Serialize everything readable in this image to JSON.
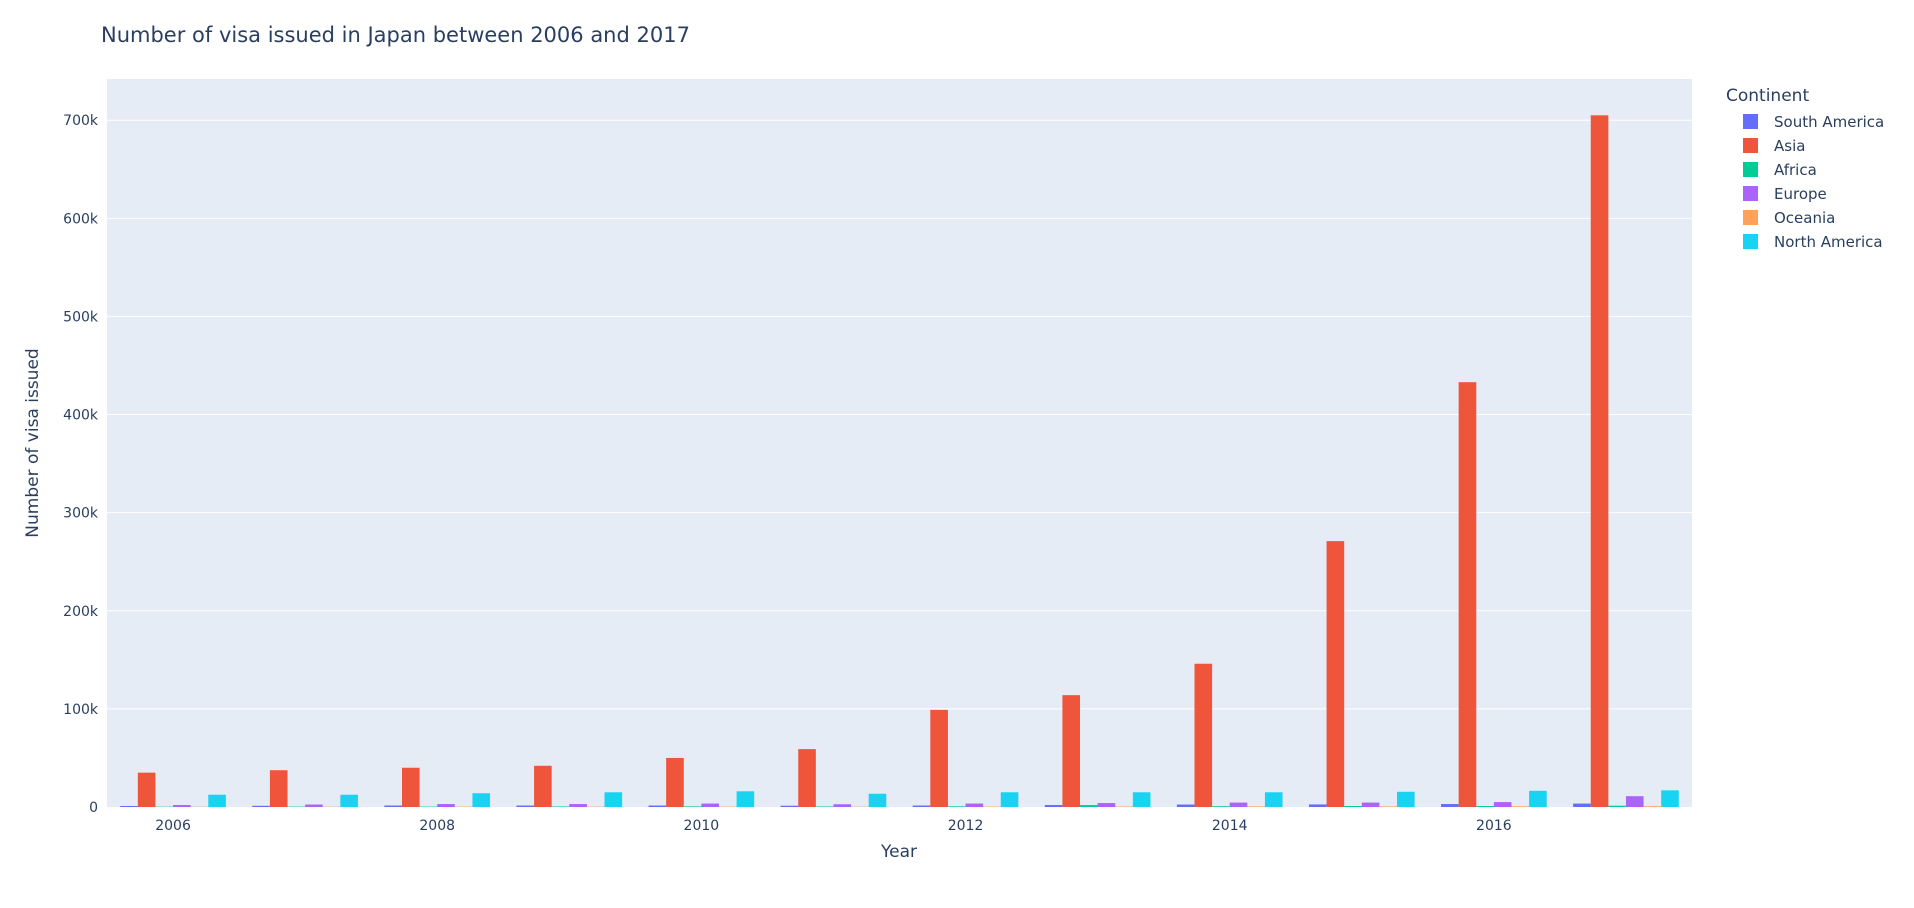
{
  "chart_data": {
    "type": "bar",
    "title": "Number of visa issued in Japan between 2006 and 2017",
    "xlabel": "Year",
    "ylabel": "Number of visa issued",
    "x": [
      2006,
      2007,
      2008,
      2009,
      2010,
      2011,
      2012,
      2013,
      2014,
      2015,
      2016,
      2017
    ],
    "xticks": [
      2006,
      2008,
      2010,
      2012,
      2014,
      2016
    ],
    "yticks": [
      0,
      100000,
      200000,
      300000,
      400000,
      500000,
      600000,
      700000
    ],
    "ytick_labels": [
      "0",
      "100k",
      "200k",
      "300k",
      "400k",
      "500k",
      "600k",
      "700k"
    ],
    "ylim": [
      0,
      742000
    ],
    "xlim": [
      2005.5,
      2017.5
    ],
    "grid": true,
    "legend": {
      "title": "Continent",
      "placement": "top-right"
    },
    "series": [
      {
        "name": "South America",
        "color": "#636efa",
        "values": [
          1000,
          1200,
          1500,
          1500,
          1500,
          1300,
          1500,
          2000,
          2500,
          2600,
          3000,
          3500
        ]
      },
      {
        "name": "Asia",
        "color": "#ef553b",
        "values": [
          35000,
          37500,
          40000,
          42000,
          50000,
          59000,
          99000,
          114000,
          146000,
          271000,
          433000,
          705000
        ]
      },
      {
        "name": "Africa",
        "color": "#00cc96",
        "values": [
          300,
          400,
          400,
          500,
          600,
          500,
          700,
          2000,
          800,
          1000,
          1000,
          1300
        ]
      },
      {
        "name": "Europe",
        "color": "#ab63fa",
        "values": [
          2000,
          2500,
          3000,
          3000,
          3500,
          2800,
          3500,
          4000,
          4500,
          4500,
          5000,
          11000
        ]
      },
      {
        "name": "Oceania",
        "color": "#ffa15a",
        "values": [
          300,
          300,
          400,
          400,
          400,
          300,
          400,
          500,
          600,
          600,
          700,
          800
        ]
      },
      {
        "name": "North America",
        "color": "#19d3f3",
        "values": [
          12500,
          12500,
          14000,
          15000,
          16000,
          13500,
          15000,
          15000,
          15000,
          15500,
          16500,
          17000
        ]
      }
    ]
  }
}
